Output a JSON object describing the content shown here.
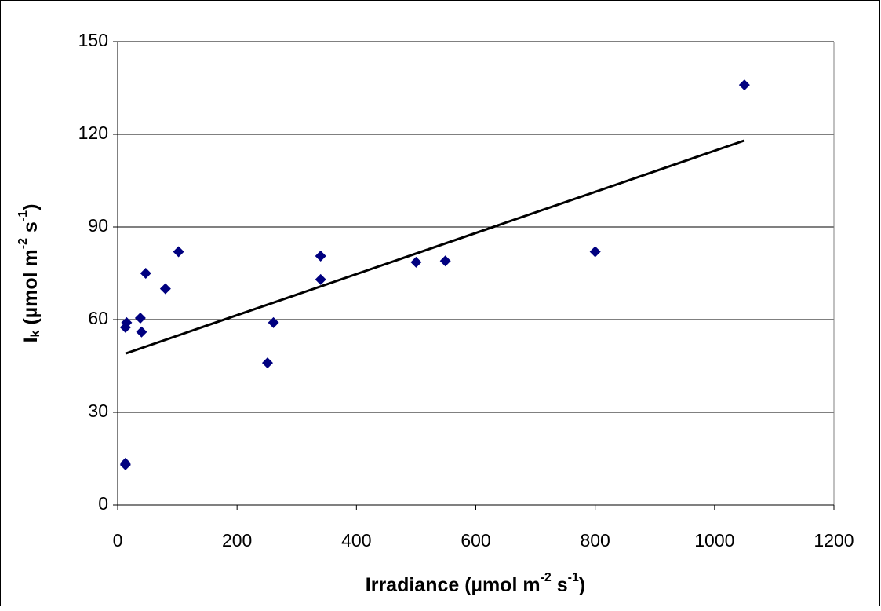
{
  "chart_data": {
    "type": "scatter",
    "xlabel": [
      "Irradiance (µmol m",
      "-2",
      " s",
      "-1",
      ")"
    ],
    "ylabel": [
      "I",
      "k",
      " (µmol m",
      "-2",
      " s",
      "-1",
      ")"
    ],
    "xlim": [
      0,
      1200
    ],
    "xticks": [
      0,
      200,
      400,
      600,
      800,
      1000,
      1200
    ],
    "ylim": [
      0,
      150
    ],
    "yticks": [
      0,
      30,
      60,
      90,
      120,
      150
    ],
    "grid": true,
    "series": [
      {
        "color": "#000080",
        "x": [
          13,
          15,
          13,
          13,
          38,
          40,
          47,
          80,
          102,
          251,
          261,
          340,
          340,
          500,
          549,
          800,
          1050
        ],
        "values": [
          57.5,
          59,
          13.5,
          13,
          60.5,
          56,
          75,
          70,
          82,
          46,
          59,
          80.6,
          73,
          78.6,
          79,
          82,
          136
        ]
      },
      {
        "type": "line",
        "color": "#000000",
        "x": [
          13,
          1050
        ],
        "values": [
          49,
          118
        ]
      }
    ]
  }
}
